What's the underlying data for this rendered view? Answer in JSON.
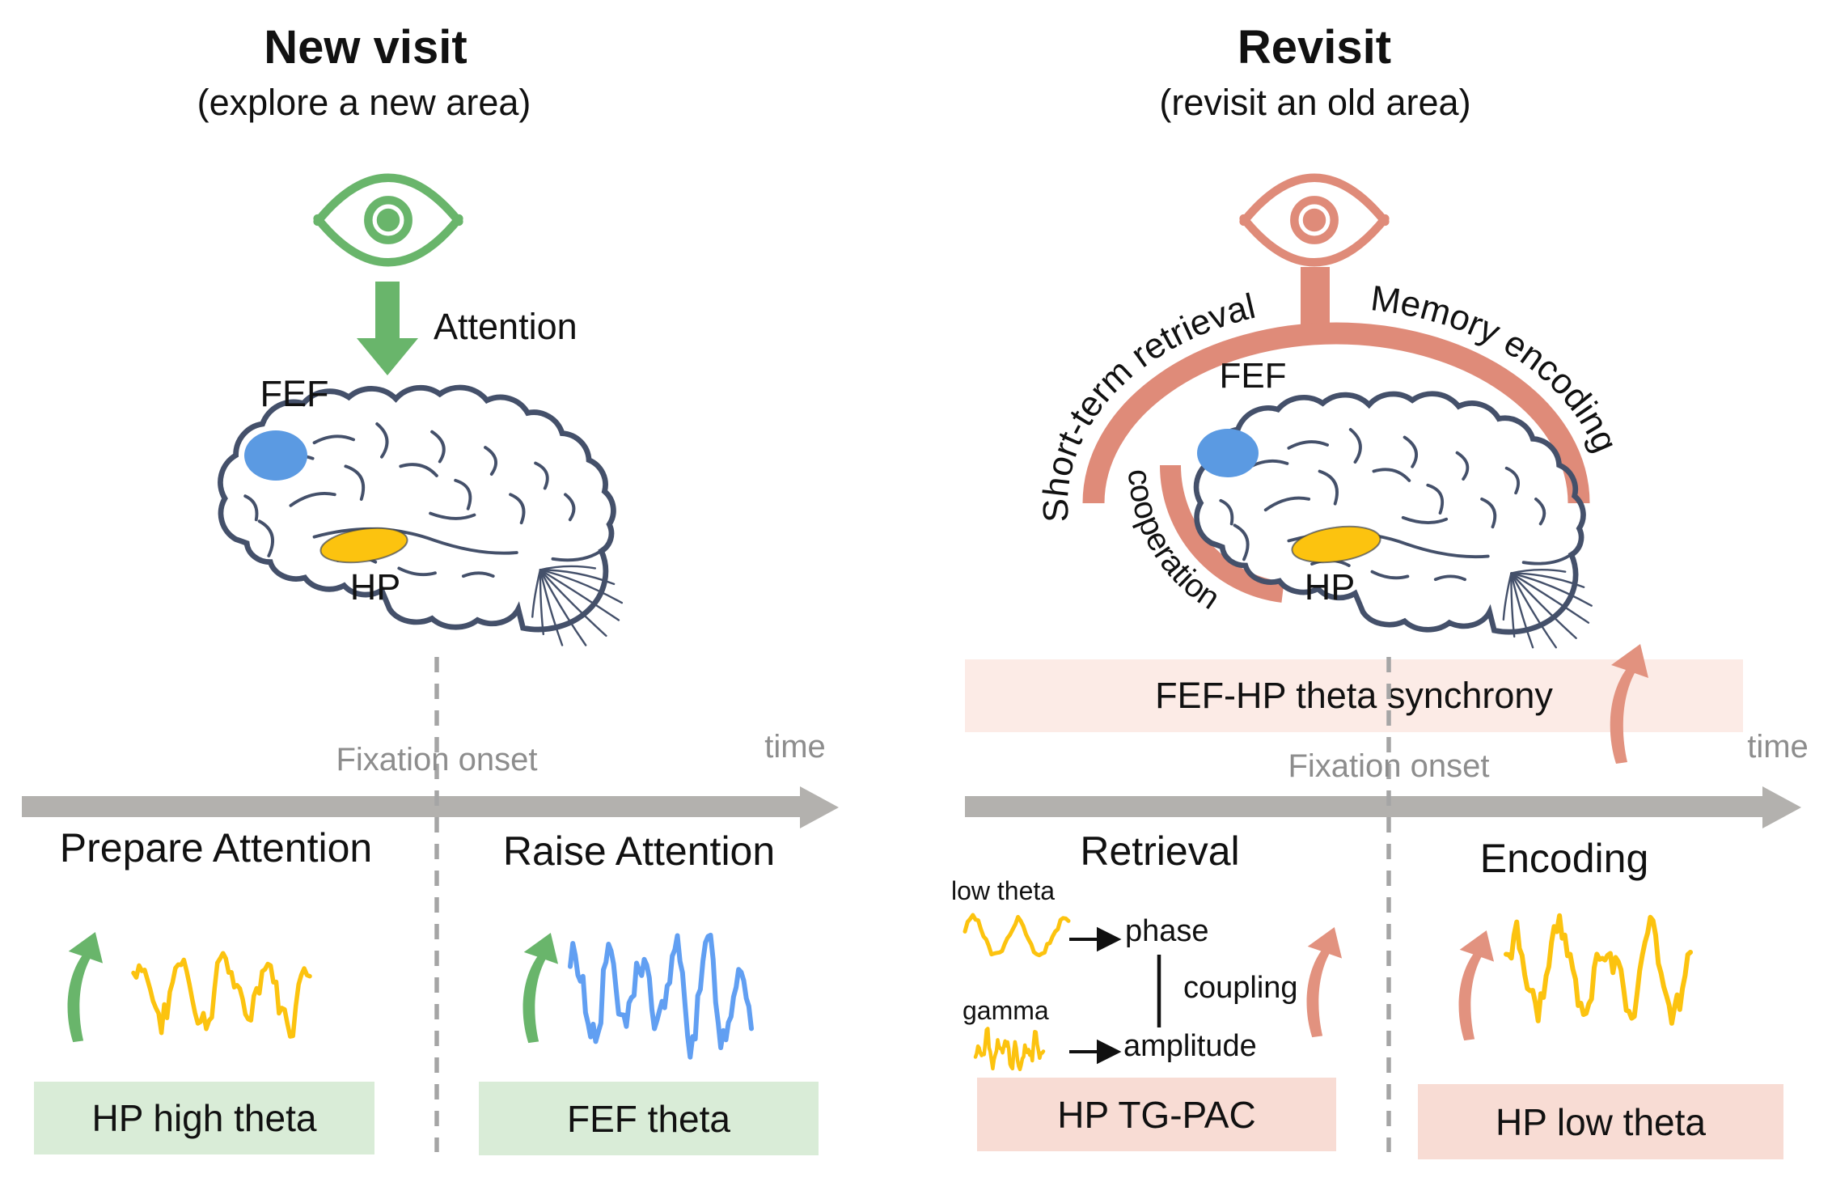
{
  "left_panel": {
    "title": "New visit",
    "subtitle": "(explore a new area)",
    "attention_label": "Attention",
    "fef_label": "FEF",
    "hp_label": "HP",
    "timeline": {
      "event": "Fixation onset",
      "axis": "time"
    },
    "phase_pre": {
      "label": "Prepare Attention",
      "box": "HP high theta"
    },
    "phase_post": {
      "label": "Raise Attention",
      "box": "FEF theta"
    }
  },
  "right_panel": {
    "title": "Revisit",
    "subtitle": "(revisit an old area)",
    "arc_left_label": "Short-term retrieval",
    "arc_right_label": "Memory encoding",
    "arc_inner_label": "cooperation",
    "fef_label": "FEF",
    "hp_label": "HP",
    "banner": "FEF-HP theta synchrony",
    "timeline": {
      "event": "Fixation onset",
      "axis": "time"
    },
    "phase_pre": {
      "label": "Retrieval",
      "box": "HP TG-PAC"
    },
    "phase_post": {
      "label": "Encoding",
      "box": "HP low theta"
    },
    "pac": {
      "low_theta": "low theta",
      "gamma": "gamma",
      "phase": "phase",
      "amplitude": "amplitude",
      "coupling": "coupling"
    }
  },
  "colors": {
    "green": "#69b56b",
    "green_box": "#d9ecd7",
    "salmon": "#df8b79",
    "salmon_arrow": "#e2927f",
    "pink_box": "#f8dcd4",
    "pink_banner": "#fcebe6",
    "yellow": "#fcc30f",
    "blue": "#5b9ae2",
    "blue_wave": "#619ff2",
    "axis_gray": "#b3b1ae",
    "gray_text": "#8d8d8d",
    "brain_outline": "#44506a"
  },
  "icons": [
    "eye-icon",
    "down-arrow-icon",
    "curved-up-arrow-icon",
    "timeline-arrow-icon",
    "brain-illustration"
  ]
}
